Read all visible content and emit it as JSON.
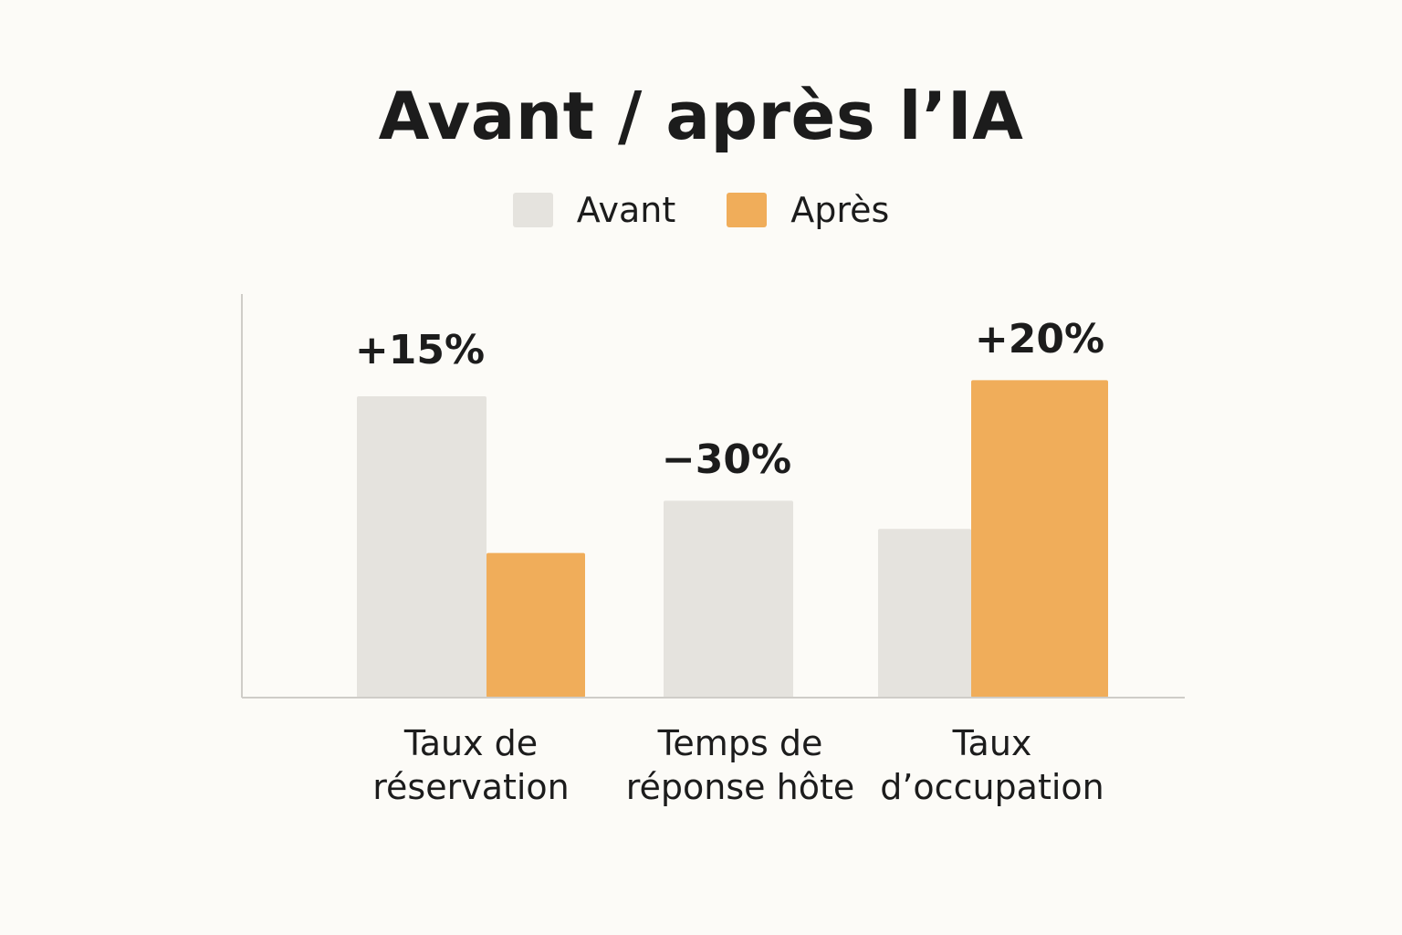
{
  "chart_data": {
    "type": "bar",
    "title": "Avant / après l’IA",
    "xlabel": "",
    "ylabel": "",
    "ylim": [
      0,
      100
    ],
    "grid": false,
    "legend_position": "top-center",
    "categories": [
      {
        "line1": "Taux de",
        "line2": "réservation"
      },
      {
        "line1": "Temps de",
        "line2": "réponse hôte"
      },
      {
        "line1": "Taux",
        "line2": "d’occupation"
      }
    ],
    "series": [
      {
        "name": "Avant",
        "color": "#e5e3de",
        "values": [
          75,
          49,
          42
        ]
      },
      {
        "name": "Après",
        "color": "#f0ad5a",
        "values": [
          36,
          0,
          79
        ]
      }
    ],
    "annotations": [
      "+15%",
      "−30%",
      "+20%"
    ]
  }
}
